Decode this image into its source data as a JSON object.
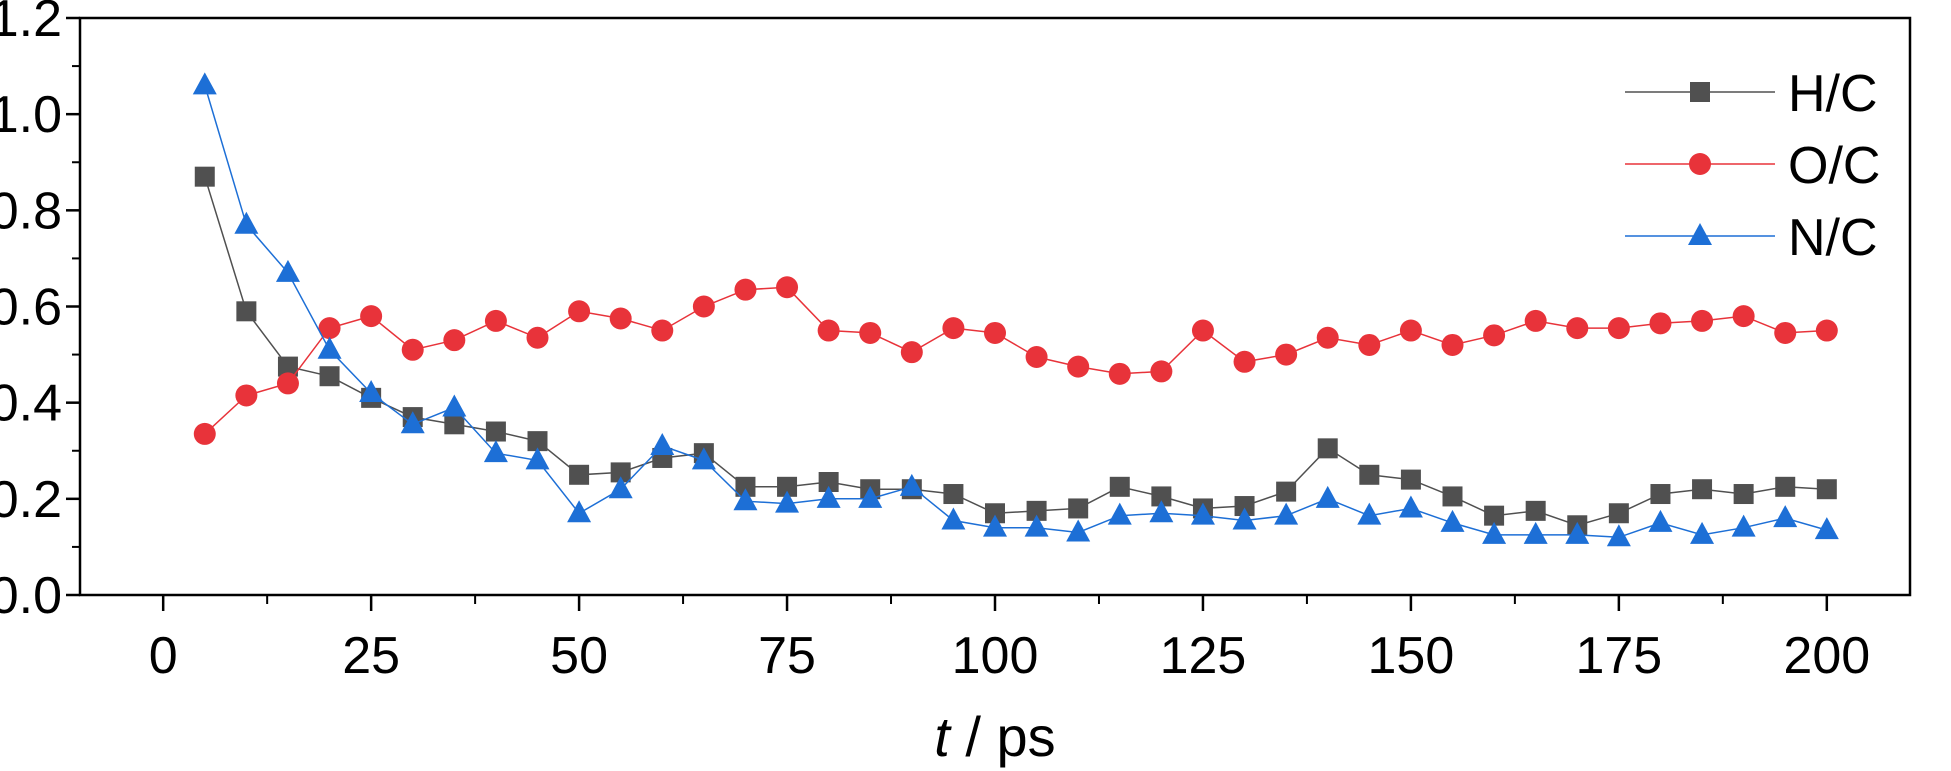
{
  "chart_data": {
    "type": "line",
    "title": "",
    "xlabel": {
      "italic": "t",
      "rest": " / ps"
    },
    "ylabel": "",
    "xlim": [
      -10,
      210
    ],
    "ylim": [
      0,
      1.2
    ],
    "xticks": [
      0,
      25,
      50,
      75,
      100,
      125,
      150,
      175,
      200
    ],
    "yticks": [
      0.0,
      0.2,
      0.4,
      0.6,
      0.8,
      1.0,
      1.2
    ],
    "xtick_labels": [
      "0",
      "25",
      "50",
      "75",
      "100",
      "125",
      "150",
      "175",
      "200"
    ],
    "ytick_labels": [
      "0.0",
      "0.2",
      "0.4",
      "0.6",
      "0.8",
      "1.0",
      "1.2"
    ],
    "grid": false,
    "legend_position": "top-right",
    "x": [
      5,
      10,
      15,
      20,
      25,
      30,
      35,
      40,
      45,
      50,
      55,
      60,
      65,
      70,
      75,
      80,
      85,
      90,
      95,
      100,
      105,
      110,
      115,
      120,
      125,
      130,
      135,
      140,
      145,
      150,
      155,
      160,
      165,
      170,
      175,
      180,
      185,
      190,
      195,
      200
    ],
    "series": [
      {
        "name": "H/C",
        "marker": "square",
        "color": "#505050",
        "values": [
          0.87,
          0.59,
          0.475,
          0.455,
          0.41,
          0.37,
          0.355,
          0.34,
          0.32,
          0.25,
          0.255,
          0.285,
          0.295,
          0.225,
          0.225,
          0.235,
          0.22,
          0.22,
          0.21,
          0.17,
          0.175,
          0.18,
          0.225,
          0.205,
          0.18,
          0.185,
          0.215,
          0.305,
          0.25,
          0.24,
          0.205,
          0.165,
          0.175,
          0.145,
          0.17,
          0.21,
          0.22,
          0.21,
          0.225,
          0.22
        ]
      },
      {
        "name": "O/C",
        "marker": "circle",
        "color": "#e8333a",
        "values": [
          0.335,
          0.415,
          0.44,
          0.555,
          0.58,
          0.51,
          0.53,
          0.57,
          0.535,
          0.59,
          0.575,
          0.55,
          0.6,
          0.635,
          0.64,
          0.55,
          0.545,
          0.505,
          0.555,
          0.545,
          0.495,
          0.475,
          0.46,
          0.465,
          0.55,
          0.485,
          0.5,
          0.535,
          0.52,
          0.55,
          0.52,
          0.54,
          0.57,
          0.555,
          0.555,
          0.565,
          0.57,
          0.58,
          0.545,
          0.55
        ]
      },
      {
        "name": "N/C",
        "marker": "triangle",
        "color": "#1d6fd6",
        "values": [
          1.06,
          0.77,
          0.67,
          0.51,
          0.42,
          0.355,
          0.39,
          0.295,
          0.28,
          0.17,
          0.22,
          0.31,
          0.28,
          0.195,
          0.19,
          0.2,
          0.2,
          0.225,
          0.155,
          0.14,
          0.14,
          0.13,
          0.165,
          0.17,
          0.165,
          0.155,
          0.165,
          0.2,
          0.165,
          0.18,
          0.15,
          0.125,
          0.125,
          0.125,
          0.12,
          0.15,
          0.125,
          0.14,
          0.16,
          0.135
        ]
      }
    ]
  }
}
